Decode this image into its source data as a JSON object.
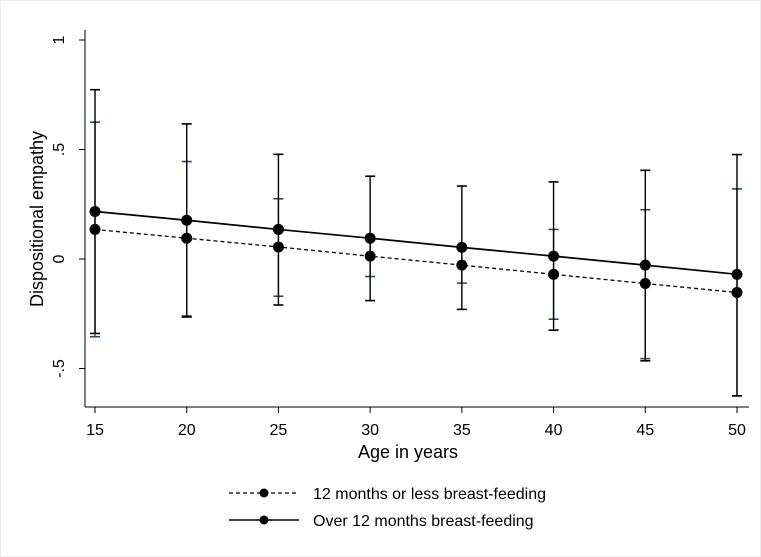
{
  "chart_data": {
    "type": "line",
    "title": "",
    "xlabel": "Age in years",
    "ylabel": "Dispositional empathy",
    "x": [
      15,
      20,
      25,
      30,
      35,
      40,
      45,
      50
    ],
    "x_tick_labels": [
      "15",
      "20",
      "25",
      "30",
      "35",
      "40",
      "45",
      "50"
    ],
    "y_ticks": [
      -0.5,
      0,
      0.5,
      1
    ],
    "y_tick_labels": [
      "-.5",
      "0",
      ".5",
      "1"
    ],
    "xlim": [
      15,
      50
    ],
    "ylim": [
      -0.5,
      1
    ],
    "grid": false,
    "legend_position": "bottom",
    "series": [
      {
        "name": "12 months or less breast-feeding",
        "line_style": "dashed",
        "color": "#000000",
        "ci_color": "#2b4a6b",
        "values": [
          0.135,
          0.095,
          0.055,
          0.013,
          -0.028,
          -0.07,
          -0.112,
          -0.153
        ],
        "ci_low": [
          -0.355,
          -0.26,
          -0.17,
          -0.08,
          -0.11,
          -0.275,
          -0.455,
          -0.625
        ],
        "ci_high": [
          0.625,
          0.445,
          0.275,
          0.09,
          0.055,
          0.135,
          0.225,
          0.32
        ]
      },
      {
        "name": "Over 12 months breast-feeding",
        "line_style": "solid",
        "color": "#000000",
        "ci_color": "#000000",
        "values": [
          0.217,
          0.177,
          0.135,
          0.095,
          0.053,
          0.013,
          -0.028,
          -0.07
        ],
        "ci_low": [
          -0.34,
          -0.265,
          -0.21,
          -0.19,
          -0.23,
          -0.325,
          -0.465,
          -0.625
        ],
        "ci_high": [
          0.773,
          0.617,
          0.478,
          0.378,
          0.333,
          0.352,
          0.405,
          0.477
        ]
      }
    ]
  }
}
